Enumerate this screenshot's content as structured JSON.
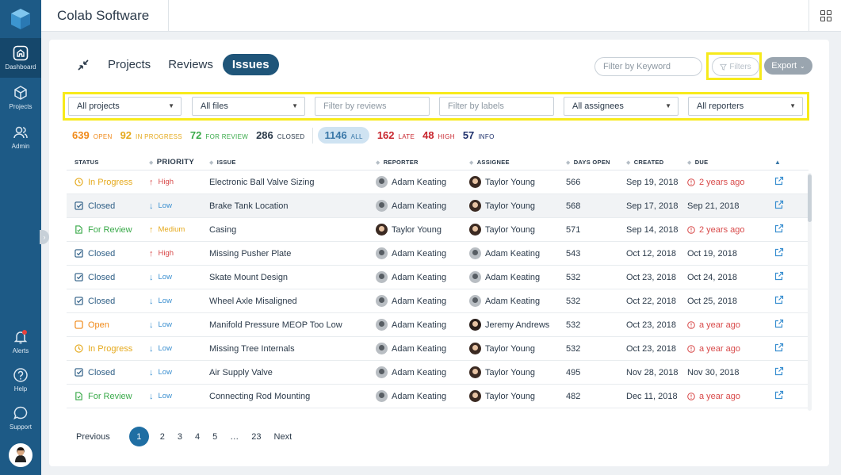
{
  "app": {
    "title": "Colab Software"
  },
  "sidebar": {
    "items": [
      {
        "label": "Dashboard",
        "icon": "home-icon",
        "active": true
      },
      {
        "label": "Projects",
        "icon": "cube-icon"
      },
      {
        "label": "Admin",
        "icon": "users-icon"
      }
    ],
    "bottom": [
      {
        "label": "Alerts",
        "icon": "bell-icon"
      },
      {
        "label": "Help",
        "icon": "question-icon"
      },
      {
        "label": "Support",
        "icon": "chat-icon"
      }
    ]
  },
  "tabs": [
    "Projects",
    "Reviews",
    "Issues"
  ],
  "active_tab": "Issues",
  "toolbar": {
    "keyword_placeholder": "Filter by Keyword",
    "filters_label": "Filters",
    "export_label": "Export"
  },
  "filters": {
    "projects": "All projects",
    "files": "All files",
    "reviews_placeholder": "Filter by reviews",
    "labels_placeholder": "Filter by labels",
    "assignees": "All assignees",
    "reporters": "All reporters"
  },
  "stats": [
    {
      "value": "639",
      "label": "OPEN",
      "color": "#f08a1a"
    },
    {
      "value": "92",
      "label": "IN PROGRESS",
      "color": "#e5a91c"
    },
    {
      "value": "72",
      "label": "FOR REVIEW",
      "color": "#3aaa4a"
    },
    {
      "value": "286",
      "label": "CLOSED",
      "color": "#2b3a4a"
    },
    {
      "value": "1146",
      "label": "ALL",
      "color": "#3a78a8"
    },
    {
      "value": "162",
      "label": "LATE",
      "color": "#c8262e"
    },
    {
      "value": "48",
      "label": "HIGH",
      "color": "#c8262e"
    },
    {
      "value": "57",
      "label": "INFO",
      "color": "#1d2f6b"
    }
  ],
  "columns": [
    "STATUS",
    "PRIORITY",
    "ISSUE",
    "REPORTER",
    "ASSIGNEE",
    "DAYS OPEN",
    "CREATED",
    "DUE"
  ],
  "rows": [
    {
      "status": "In Progress",
      "priority": "High",
      "issue": "Electronic Ball Valve Sizing",
      "reporter": "Adam Keating",
      "assignee": "Taylor Young",
      "days": "566",
      "created": "Sep 19, 2018",
      "due": "2 years ago",
      "late": true
    },
    {
      "status": "Closed",
      "priority": "Low",
      "issue": "Brake Tank Location",
      "reporter": "Adam Keating",
      "assignee": "Taylor Young",
      "days": "568",
      "created": "Sep 17, 2018",
      "due": "Sep 21, 2018",
      "late": false
    },
    {
      "status": "For Review",
      "priority": "Medium",
      "issue": "Casing",
      "reporter": "Taylor Young",
      "assignee": "Taylor Young",
      "days": "571",
      "created": "Sep 14, 2018",
      "due": "2 years ago",
      "late": true
    },
    {
      "status": "Closed",
      "priority": "High",
      "issue": "Missing Pusher Plate",
      "reporter": "Adam Keating",
      "assignee": "Adam Keating",
      "days": "543",
      "created": "Oct 12, 2018",
      "due": "Oct 19, 2018",
      "late": false
    },
    {
      "status": "Closed",
      "priority": "Low",
      "issue": "Skate Mount Design",
      "reporter": "Adam Keating",
      "assignee": "Adam Keating",
      "days": "532",
      "created": "Oct 23, 2018",
      "due": "Oct 24, 2018",
      "late": false
    },
    {
      "status": "Closed",
      "priority": "Low",
      "issue": "Wheel Axle Misaligned",
      "reporter": "Adam Keating",
      "assignee": "Adam Keating",
      "days": "532",
      "created": "Oct 22, 2018",
      "due": "Oct 25, 2018",
      "late": false
    },
    {
      "status": "Open",
      "priority": "Low",
      "issue": "Manifold Pressure MEOP Too Low",
      "reporter": "Adam Keating",
      "assignee": "Jeremy Andrews",
      "days": "532",
      "created": "Oct 23, 2018",
      "due": "a year ago",
      "late": true
    },
    {
      "status": "In Progress",
      "priority": "Low",
      "issue": "Missing Tree Internals",
      "reporter": "Adam Keating",
      "assignee": "Taylor Young",
      "days": "532",
      "created": "Oct 23, 2018",
      "due": "a year ago",
      "late": true
    },
    {
      "status": "Closed",
      "priority": "Low",
      "issue": "Air Supply Valve",
      "reporter": "Adam Keating",
      "assignee": "Taylor Young",
      "days": "495",
      "created": "Nov 28, 2018",
      "due": "Nov 30, 2018",
      "late": false
    },
    {
      "status": "For Review",
      "priority": "Low",
      "issue": "Connecting Rod Mounting",
      "reporter": "Adam Keating",
      "assignee": "Taylor Young",
      "days": "482",
      "created": "Dec 11, 2018",
      "due": "a year ago",
      "late": true
    }
  ],
  "pagination": {
    "prev": "Previous",
    "pages": [
      "1",
      "2",
      "3",
      "4",
      "5",
      "…",
      "23"
    ],
    "current": "1",
    "next": "Next"
  },
  "colors": {
    "sidebar": "#1d5a86",
    "accent": "#1f5579",
    "late": "#d84a4a",
    "highlight": "#f7ea1b"
  }
}
